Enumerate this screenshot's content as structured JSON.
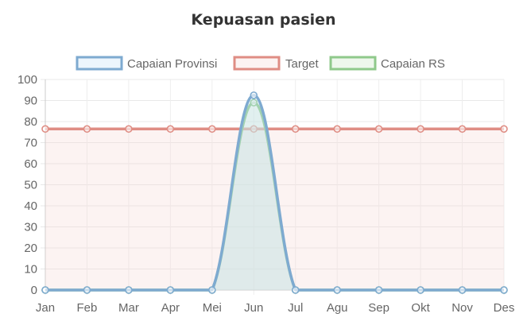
{
  "chart_data": {
    "type": "line",
    "title": "Kepuasan pasien",
    "categories": [
      "Jan",
      "Feb",
      "Mar",
      "Apr",
      "Mei",
      "Jun",
      "Jul",
      "Agu",
      "Sep",
      "Okt",
      "Nov",
      "Des"
    ],
    "ylim": [
      0,
      100
    ],
    "yticks": [
      0,
      10,
      20,
      30,
      40,
      50,
      60,
      70,
      80,
      90,
      100
    ],
    "grid": true,
    "legend_position": "top",
    "series": [
      {
        "name": "Capaian Provinsi",
        "color": "#7eaad0",
        "fill": "rgba(200,225,245,0.35)",
        "values": [
          0,
          0,
          0,
          0,
          0,
          92.5,
          0,
          0,
          0,
          0,
          0,
          0
        ]
      },
      {
        "name": "Target",
        "color": "#df8d84",
        "fill": "rgba(245,215,212,0.30)",
        "values": [
          76.5,
          76.5,
          76.5,
          76.5,
          76.5,
          76.5,
          76.5,
          76.5,
          76.5,
          76.5,
          76.5,
          76.5
        ]
      },
      {
        "name": "Capaian RS",
        "color": "#8fc98b",
        "fill": "rgba(205,232,200,0.35)",
        "values": [
          0,
          0,
          0,
          0,
          0,
          89,
          0,
          0,
          0,
          0,
          0,
          0
        ]
      }
    ]
  }
}
